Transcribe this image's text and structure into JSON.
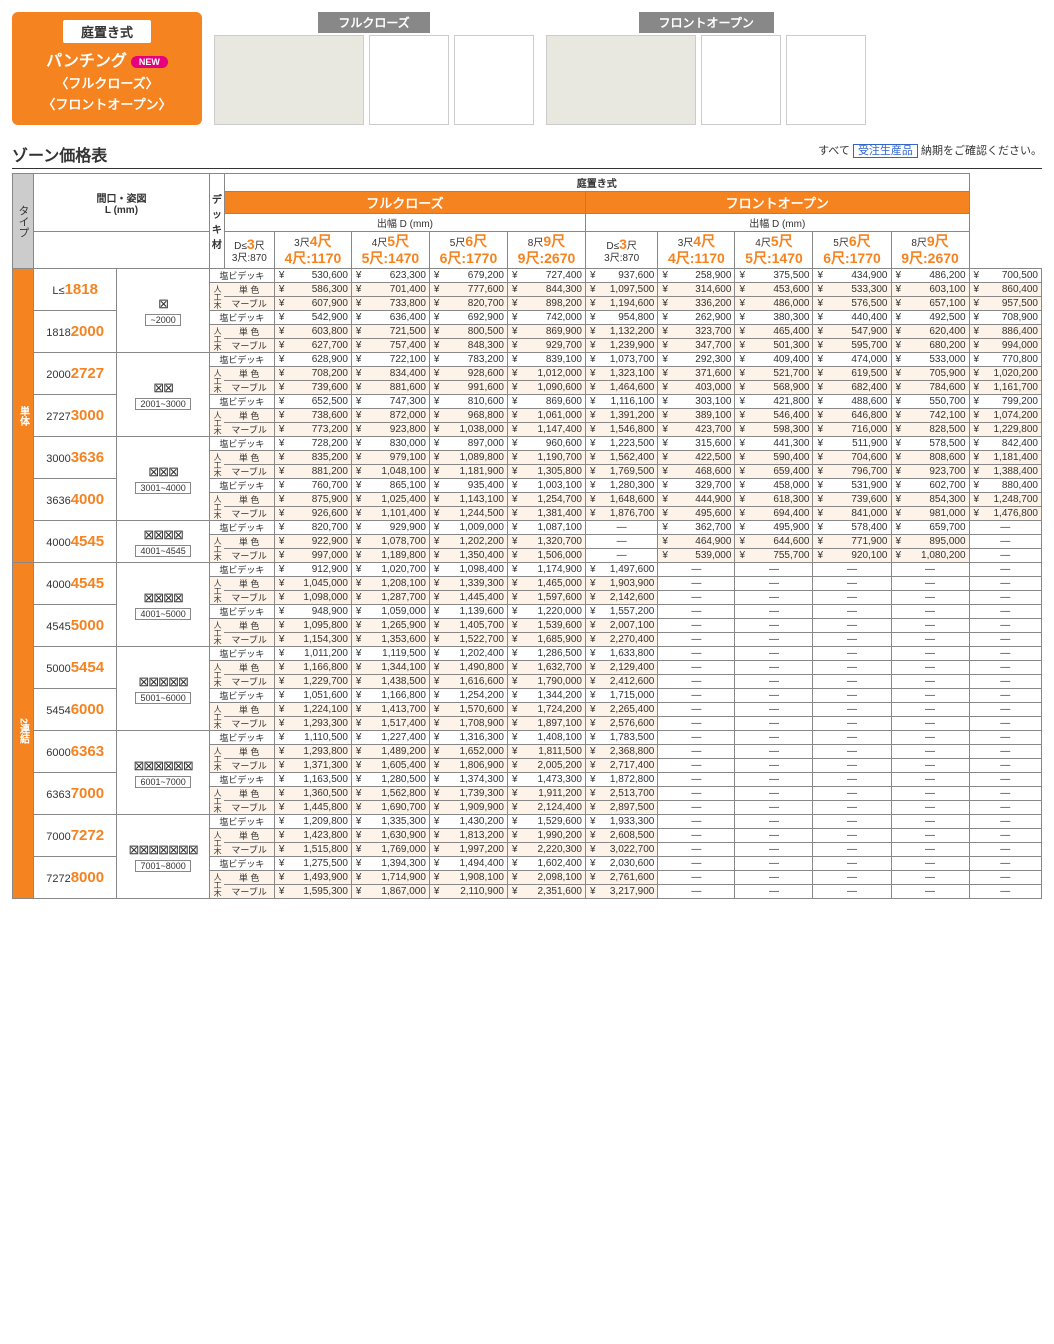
{
  "header": {
    "top_label": "庭置き式",
    "main_label": "パンチング",
    "new_badge": "NEW",
    "sub1": "〈フルクローズ〉",
    "sub2": "〈フロントオープン〉",
    "diag_title1": "フルクローズ",
    "diag_title2": "フロントオープン"
  },
  "section_title": "ゾーン価格表",
  "note": {
    "all": "すべて",
    "boxed": "受注生産品",
    "rest": "納期をご確認ください。"
  },
  "col_labels": {
    "type": "タイプ",
    "maguchi": "間口・姿図",
    "lmm": "L (mm)",
    "deck": "デッキ材",
    "niwaki": "庭置き式",
    "fc": "フルクローズ",
    "fo": "フロントオープン",
    "dehaba": "出幅 D (mm)",
    "tantai": "単体",
    "renketsu": "2連結"
  },
  "depth_cols": [
    {
      "t": "D≤",
      "n": "3",
      "u": "尺",
      "b": "3尺:870"
    },
    {
      "t": "3尺<D≤",
      "n": "4",
      "u": "尺",
      "b": "4尺:1170"
    },
    {
      "t": "4尺<D≤",
      "n": "5",
      "u": "尺",
      "b": "5尺:1470"
    },
    {
      "t": "5尺<D≤",
      "n": "6",
      "u": "尺",
      "b": "6尺:1770"
    },
    {
      "t": "8尺<D≤",
      "n": "9",
      "u": "尺",
      "b": "9尺:2670"
    }
  ],
  "deck_types": [
    "塩ビデッキ",
    "単 色",
    "マーブル"
  ],
  "deck_prefix": "人工木",
  "ranges_tantai": [
    {
      "r": "L≤",
      "n": "1818",
      "shape": "⊠",
      "sub": "~2000",
      "rows": 3
    },
    {
      "r": "1818<L≤",
      "n": "2000",
      "rows": 3
    },
    {
      "r": "2000<L≤",
      "n": "2727",
      "shape": "⊠⊠",
      "sub": "2001~3000",
      "rows": 3
    },
    {
      "r": "2727<L≤",
      "n": "3000",
      "rows": 3
    },
    {
      "r": "3000<L≤",
      "n": "3636",
      "shape": "⊠⊠⊠",
      "sub": "3001~4000",
      "rows": 3
    },
    {
      "r": "3636<L≤",
      "n": "4000",
      "rows": 3
    },
    {
      "r": "4000<L≤",
      "n": "4545",
      "shape": "⊠⊠⊠⊠",
      "sub": "4001~4545",
      "rows": 3
    }
  ],
  "ranges_renketsu": [
    {
      "r": "4000<L≤",
      "n": "4545",
      "shape": "⊠⊠⊠⊠",
      "sub": "4001~5000",
      "rows": 3
    },
    {
      "r": "4545<L≤",
      "n": "5000",
      "rows": 3
    },
    {
      "r": "5000<L≤",
      "n": "5454",
      "shape": "⊠⊠⊠⊠⊠",
      "sub": "5001~6000",
      "rows": 3
    },
    {
      "r": "5454<L≤",
      "n": "6000",
      "rows": 3
    },
    {
      "r": "6000<L≤",
      "n": "6363",
      "shape": "⊠⊠⊠⊠⊠⊠",
      "sub": "6001~7000",
      "rows": 3
    },
    {
      "r": "6363<L≤",
      "n": "7000",
      "rows": 3
    },
    {
      "r": "7000<L≤",
      "n": "7272",
      "shape": "⊠⊠⊠⊠⊠⊠⊠",
      "sub": "7001~8000",
      "rows": 3
    },
    {
      "r": "7272<L≤",
      "n": "8000",
      "rows": 3
    }
  ],
  "prices_tantai": [
    [
      "530,600",
      "623,300",
      "679,200",
      "727,400",
      "937,600",
      "258,900",
      "375,500",
      "434,900",
      "486,200",
      "700,500"
    ],
    [
      "586,300",
      "701,400",
      "777,600",
      "844,300",
      "1,097,500",
      "314,600",
      "453,600",
      "533,300",
      "603,100",
      "860,400"
    ],
    [
      "607,900",
      "733,800",
      "820,700",
      "898,200",
      "1,194,600",
      "336,200",
      "486,000",
      "576,500",
      "657,100",
      "957,500"
    ],
    [
      "542,900",
      "636,400",
      "692,900",
      "742,000",
      "954,800",
      "262,900",
      "380,300",
      "440,400",
      "492,500",
      "708,900"
    ],
    [
      "603,800",
      "721,500",
      "800,500",
      "869,900",
      "1,132,200",
      "323,700",
      "465,400",
      "547,900",
      "620,400",
      "886,400"
    ],
    [
      "627,700",
      "757,400",
      "848,300",
      "929,700",
      "1,239,900",
      "347,700",
      "501,300",
      "595,700",
      "680,200",
      "994,000"
    ],
    [
      "628,900",
      "722,100",
      "783,200",
      "839,100",
      "1,073,700",
      "292,300",
      "409,400",
      "474,000",
      "533,000",
      "770,800"
    ],
    [
      "708,200",
      "834,400",
      "928,600",
      "1,012,000",
      "1,323,100",
      "371,600",
      "521,700",
      "619,500",
      "705,900",
      "1,020,200"
    ],
    [
      "739,600",
      "881,600",
      "991,600",
      "1,090,600",
      "1,464,600",
      "403,000",
      "568,900",
      "682,400",
      "784,600",
      "1,161,700"
    ],
    [
      "652,500",
      "747,300",
      "810,600",
      "869,600",
      "1,116,100",
      "303,100",
      "421,800",
      "488,600",
      "550,700",
      "799,200"
    ],
    [
      "738,600",
      "872,000",
      "968,800",
      "1,061,000",
      "1,391,200",
      "389,100",
      "546,400",
      "646,800",
      "742,100",
      "1,074,200"
    ],
    [
      "773,200",
      "923,800",
      "1,038,000",
      "1,147,400",
      "1,546,800",
      "423,700",
      "598,300",
      "716,000",
      "828,500",
      "1,229,800"
    ],
    [
      "728,200",
      "830,000",
      "897,000",
      "960,600",
      "1,223,500",
      "315,600",
      "441,300",
      "511,900",
      "578,500",
      "842,400"
    ],
    [
      "835,200",
      "979,100",
      "1,089,800",
      "1,190,700",
      "1,562,400",
      "422,500",
      "590,400",
      "704,600",
      "808,600",
      "1,181,400"
    ],
    [
      "881,200",
      "1,048,100",
      "1,181,900",
      "1,305,800",
      "1,769,500",
      "468,600",
      "659,400",
      "796,700",
      "923,700",
      "1,388,400"
    ],
    [
      "760,700",
      "865,100",
      "935,400",
      "1,003,100",
      "1,280,300",
      "329,700",
      "458,000",
      "531,900",
      "602,700",
      "880,400"
    ],
    [
      "875,900",
      "1,025,400",
      "1,143,100",
      "1,254,700",
      "1,648,600",
      "444,900",
      "618,300",
      "739,600",
      "854,300",
      "1,248,700"
    ],
    [
      "926,600",
      "1,101,400",
      "1,244,500",
      "1,381,400",
      "1,876,700",
      "495,600",
      "694,400",
      "841,000",
      "981,000",
      "1,476,800"
    ],
    [
      "820,700",
      "929,900",
      "1,009,000",
      "1,087,100",
      "—",
      "362,700",
      "495,900",
      "578,400",
      "659,700",
      "—"
    ],
    [
      "922,900",
      "1,078,700",
      "1,202,200",
      "1,320,700",
      "—",
      "464,900",
      "644,600",
      "771,900",
      "895,000",
      "—"
    ],
    [
      "997,000",
      "1,189,800",
      "1,350,400",
      "1,506,000",
      "—",
      "539,000",
      "755,700",
      "920,100",
      "1,080,200",
      "—"
    ]
  ],
  "prices_renketsu": [
    [
      "912,900",
      "1,020,700",
      "1,098,400",
      "1,174,900",
      "1,497,600",
      "—",
      "—",
      "—",
      "—",
      "—"
    ],
    [
      "1,045,000",
      "1,208,100",
      "1,339,300",
      "1,465,000",
      "1,903,900",
      "—",
      "—",
      "—",
      "—",
      "—"
    ],
    [
      "1,098,000",
      "1,287,700",
      "1,445,400",
      "1,597,600",
      "2,142,600",
      "—",
      "—",
      "—",
      "—",
      "—"
    ],
    [
      "948,900",
      "1,059,000",
      "1,139,600",
      "1,220,000",
      "1,557,200",
      "—",
      "—",
      "—",
      "—",
      "—"
    ],
    [
      "1,095,800",
      "1,265,900",
      "1,405,700",
      "1,539,600",
      "2,007,100",
      "—",
      "—",
      "—",
      "—",
      "—"
    ],
    [
      "1,154,300",
      "1,353,600",
      "1,522,700",
      "1,685,900",
      "2,270,400",
      "—",
      "—",
      "—",
      "—",
      "—"
    ],
    [
      "1,011,200",
      "1,119,500",
      "1,202,400",
      "1,286,500",
      "1,633,800",
      "—",
      "—",
      "—",
      "—",
      "—"
    ],
    [
      "1,166,800",
      "1,344,100",
      "1,490,800",
      "1,632,700",
      "2,129,400",
      "—",
      "—",
      "—",
      "—",
      "—"
    ],
    [
      "1,229,700",
      "1,438,500",
      "1,616,600",
      "1,790,000",
      "2,412,600",
      "—",
      "—",
      "—",
      "—",
      "—"
    ],
    [
      "1,051,600",
      "1,166,800",
      "1,254,200",
      "1,344,200",
      "1,715,000",
      "—",
      "—",
      "—",
      "—",
      "—"
    ],
    [
      "1,224,100",
      "1,413,700",
      "1,570,600",
      "1,724,200",
      "2,265,400",
      "—",
      "—",
      "—",
      "—",
      "—"
    ],
    [
      "1,293,300",
      "1,517,400",
      "1,708,900",
      "1,897,100",
      "2,576,600",
      "—",
      "—",
      "—",
      "—",
      "—"
    ],
    [
      "1,110,500",
      "1,227,400",
      "1,316,300",
      "1,408,100",
      "1,783,500",
      "—",
      "—",
      "—",
      "—",
      "—"
    ],
    [
      "1,293,800",
      "1,489,200",
      "1,652,000",
      "1,811,500",
      "2,368,800",
      "—",
      "—",
      "—",
      "—",
      "—"
    ],
    [
      "1,371,300",
      "1,605,400",
      "1,806,900",
      "2,005,200",
      "2,717,400",
      "—",
      "—",
      "—",
      "—",
      "—"
    ],
    [
      "1,163,500",
      "1,280,500",
      "1,374,300",
      "1,473,300",
      "1,872,800",
      "—",
      "—",
      "—",
      "—",
      "—"
    ],
    [
      "1,360,500",
      "1,562,800",
      "1,739,300",
      "1,911,200",
      "2,513,700",
      "—",
      "—",
      "—",
      "—",
      "—"
    ],
    [
      "1,445,800",
      "1,690,700",
      "1,909,900",
      "2,124,400",
      "2,897,500",
      "—",
      "—",
      "—",
      "—",
      "—"
    ],
    [
      "1,209,800",
      "1,335,300",
      "1,430,200",
      "1,529,600",
      "1,933,300",
      "—",
      "—",
      "—",
      "—",
      "—"
    ],
    [
      "1,423,800",
      "1,630,900",
      "1,813,200",
      "1,990,200",
      "2,608,500",
      "—",
      "—",
      "—",
      "—",
      "—"
    ],
    [
      "1,515,800",
      "1,769,000",
      "1,997,200",
      "2,220,300",
      "3,022,700",
      "—",
      "—",
      "—",
      "—",
      "—"
    ],
    [
      "1,275,500",
      "1,394,300",
      "1,494,400",
      "1,602,400",
      "2,030,600",
      "—",
      "—",
      "—",
      "—",
      "—"
    ],
    [
      "1,493,900",
      "1,714,900",
      "1,908,100",
      "2,098,100",
      "2,761,600",
      "—",
      "—",
      "—",
      "—",
      "—"
    ],
    [
      "1,595,300",
      "1,867,000",
      "2,110,900",
      "2,351,600",
      "3,217,900",
      "—",
      "—",
      "—",
      "—",
      "—"
    ]
  ]
}
